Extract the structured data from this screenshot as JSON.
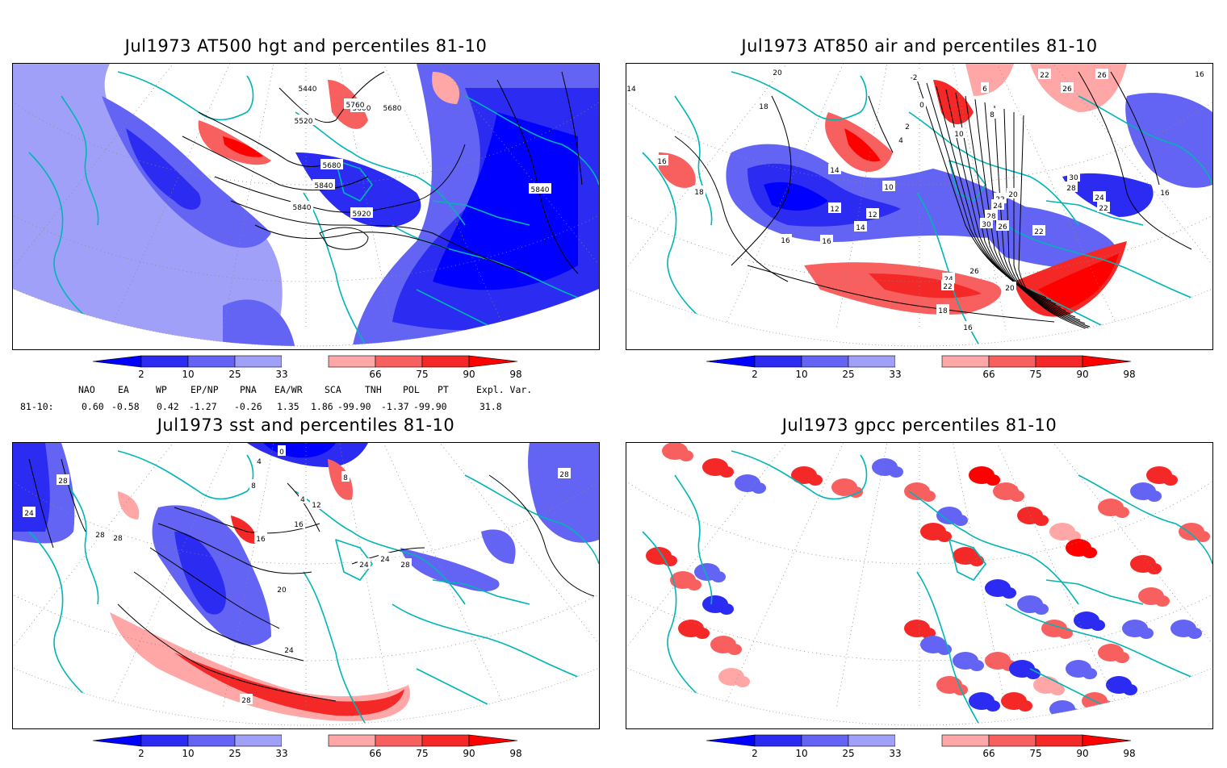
{
  "panels": [
    {
      "title": "Jul1973 AT500 hgt and percentiles 81-10",
      "contour_labels": [
        "5440",
        "5520",
        "5600",
        "5680",
        "5680",
        "5760",
        "5840",
        "5840",
        "5840",
        "5920"
      ]
    },
    {
      "title": "Jul1973 AT850 air and percentiles 81-10",
      "contour_labels": [
        "20",
        "18",
        "16",
        "18",
        "14",
        "12",
        "12",
        "14",
        "16",
        "16",
        "10",
        "4",
        "2",
        "-2",
        "0",
        "6",
        "8",
        "10",
        "20",
        "22",
        "24",
        "28",
        "30",
        "26",
        "22",
        "26",
        "30",
        "28",
        "24",
        "22",
        "16",
        "26",
        "24",
        "22",
        "20",
        "18",
        "16",
        "22",
        "26",
        "16",
        "16",
        "14"
      ]
    },
    {
      "title": "Jul1973 sst and percentiles 81-10",
      "contour_labels": [
        "28",
        "24",
        "28",
        "28",
        "0",
        "4",
        "8",
        "4",
        "8",
        "12",
        "16",
        "16",
        "20",
        "24",
        "24",
        "24",
        "28",
        "28",
        "28"
      ]
    },
    {
      "title": "Jul1973 gpcc percentiles 81-10",
      "contour_labels": []
    }
  ],
  "colorbar": {
    "ticks": [
      "2",
      "10",
      "25",
      "33",
      "66",
      "75",
      "90",
      "98"
    ],
    "colors": [
      "#0000ff",
      "#2b2bf2",
      "#6464f4",
      "#a0a0f8",
      "#ffffff",
      "#ffa6a6",
      "#f86060",
      "#f52828",
      "#ff0000"
    ]
  },
  "teleconnections": {
    "headers": [
      "NAO",
      "EA",
      "WP",
      "EP/NP",
      "PNA",
      "EA/WR",
      "SCA",
      "TNH",
      "POL",
      "PT",
      "Expl. Var."
    ],
    "row_label": "81-10:",
    "values": [
      "0.60",
      "-0.58",
      "0.42",
      "-1.27",
      "-0.26",
      "1.35",
      "1.86",
      "-99.90",
      "-1.37",
      "-99.90",
      "31.8"
    ]
  },
  "colors": {
    "coast": "#00b5b5",
    "contour": "#000000",
    "grid": "#888888"
  }
}
